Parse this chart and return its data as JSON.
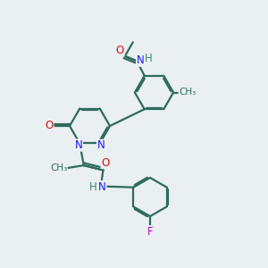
{
  "background_color": "#eaeff1",
  "bond_color": "#2d6b5e",
  "bond_width": 1.6,
  "dbo": 0.055,
  "atom_colors": {
    "N": "#1a1aee",
    "O": "#cc1111",
    "F": "#bb00bb",
    "H": "#3a8a7a",
    "C": "#2d6b5e"
  },
  "fs": 8.5
}
